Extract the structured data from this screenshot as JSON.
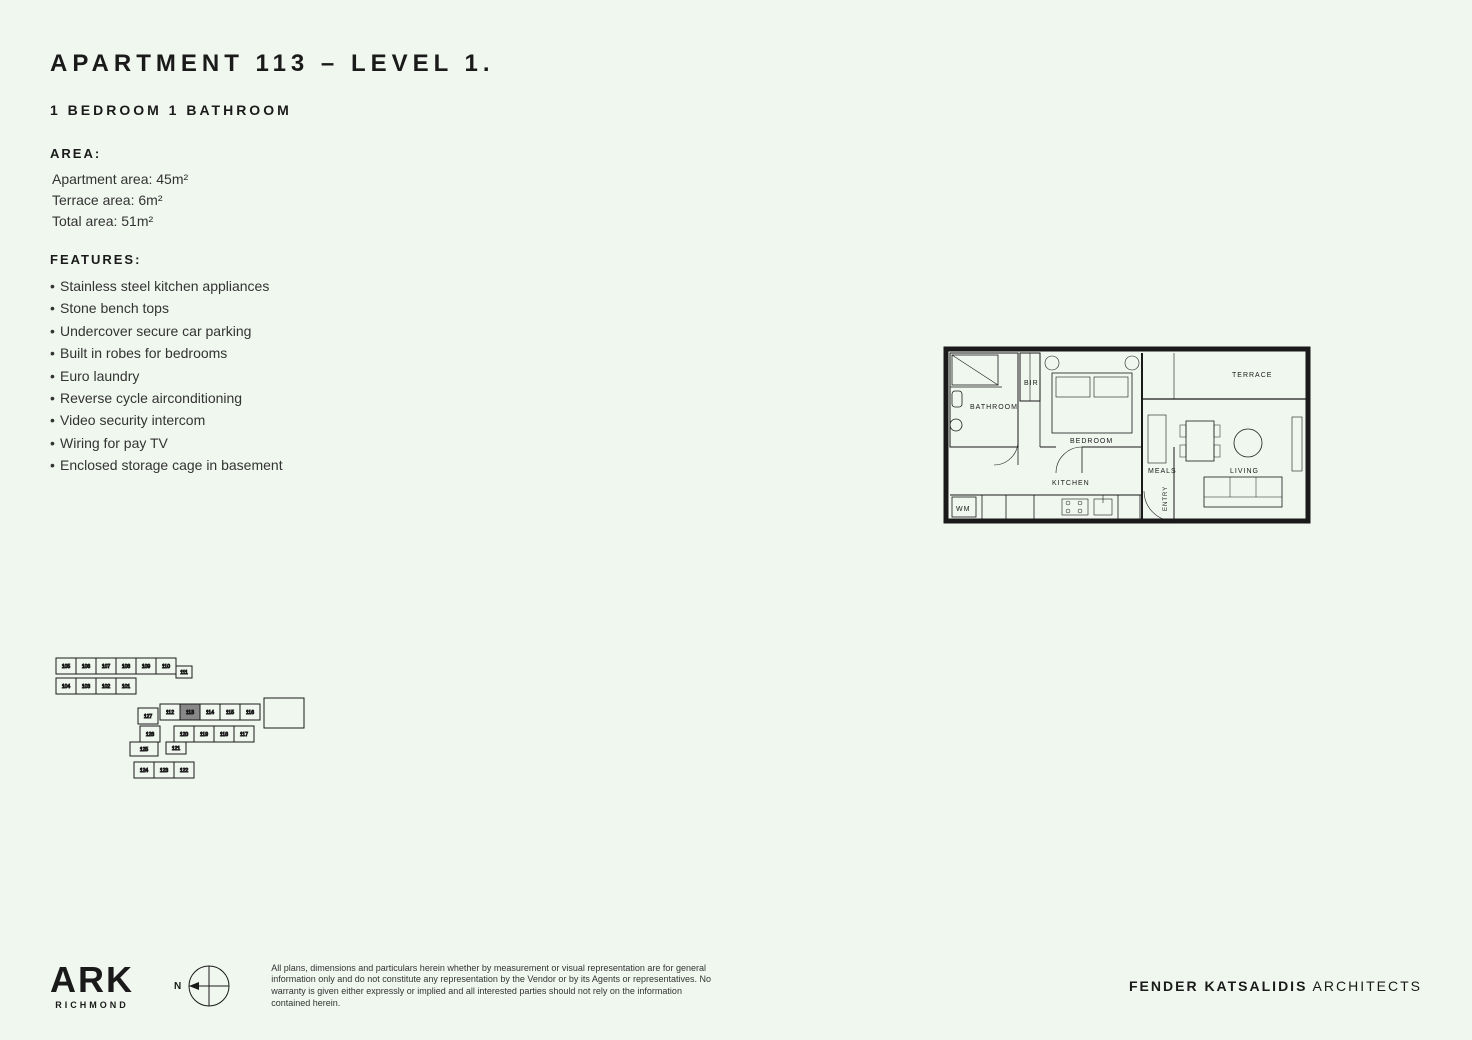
{
  "title": "APARTMENT 113 – LEVEL 1.",
  "subtitle": "1 BEDROOM 1 BATHROOM",
  "area": {
    "header": "AREA:",
    "lines": [
      "Apartment area: 45m²",
      "Terrace area: 6m²",
      "Total area: 51m²"
    ]
  },
  "features": {
    "header": "FEATURES:",
    "items": [
      "Stainless steel kitchen appliances",
      "Stone bench tops",
      "Undercover secure car parking",
      "Built in robes for bedrooms",
      "Euro laundry",
      "Reverse cycle airconditioning",
      "Video security intercom",
      "Wiring for pay TV",
      "Enclosed storage cage in basement"
    ]
  },
  "floorplan": {
    "outline_stroke": "#1a1a1a",
    "wall_width": 3,
    "thin_width": 0.8,
    "background": "#f0f7ef",
    "rooms": {
      "bathroom": "BATHROOM",
      "bir": "BIR",
      "bedroom": "BEDROOM",
      "kitchen": "KITCHEN",
      "wm": "WM",
      "meals": "MEALS",
      "living": "LIVING",
      "terrace": "TERRACE",
      "entry": "ENTRY"
    }
  },
  "keyplan": {
    "stroke": "#1a1a1a",
    "highlight_fill": "#888888",
    "units_top": [
      "105",
      "106",
      "107",
      "108",
      "109",
      "110"
    ],
    "unit_111": "111",
    "units_row2": [
      "104",
      "103",
      "102",
      "101"
    ],
    "units_mid": [
      "112",
      "113",
      "114",
      "115",
      "116"
    ],
    "unit_127": "127",
    "units_r4": [
      "128",
      "120",
      "119",
      "118",
      "117"
    ],
    "unit_125": "125",
    "unit_121": "121",
    "units_bot": [
      "124",
      "123",
      "122"
    ]
  },
  "footer": {
    "logo_main": "ARK",
    "logo_sub": "RICHMOND",
    "compass_n": "N",
    "disclaimer": "All plans, dimensions and particulars herein whether by measurement or visual representation are for general information only and do not constitute any representation by the Vendor or by its Agents or representatives. No warranty is given either expressly or implied and all interested parties should not rely on the information contained herein.",
    "architect_bold": "FENDER KATSALIDIS",
    "architect_rest": " ARCHITECTS"
  }
}
